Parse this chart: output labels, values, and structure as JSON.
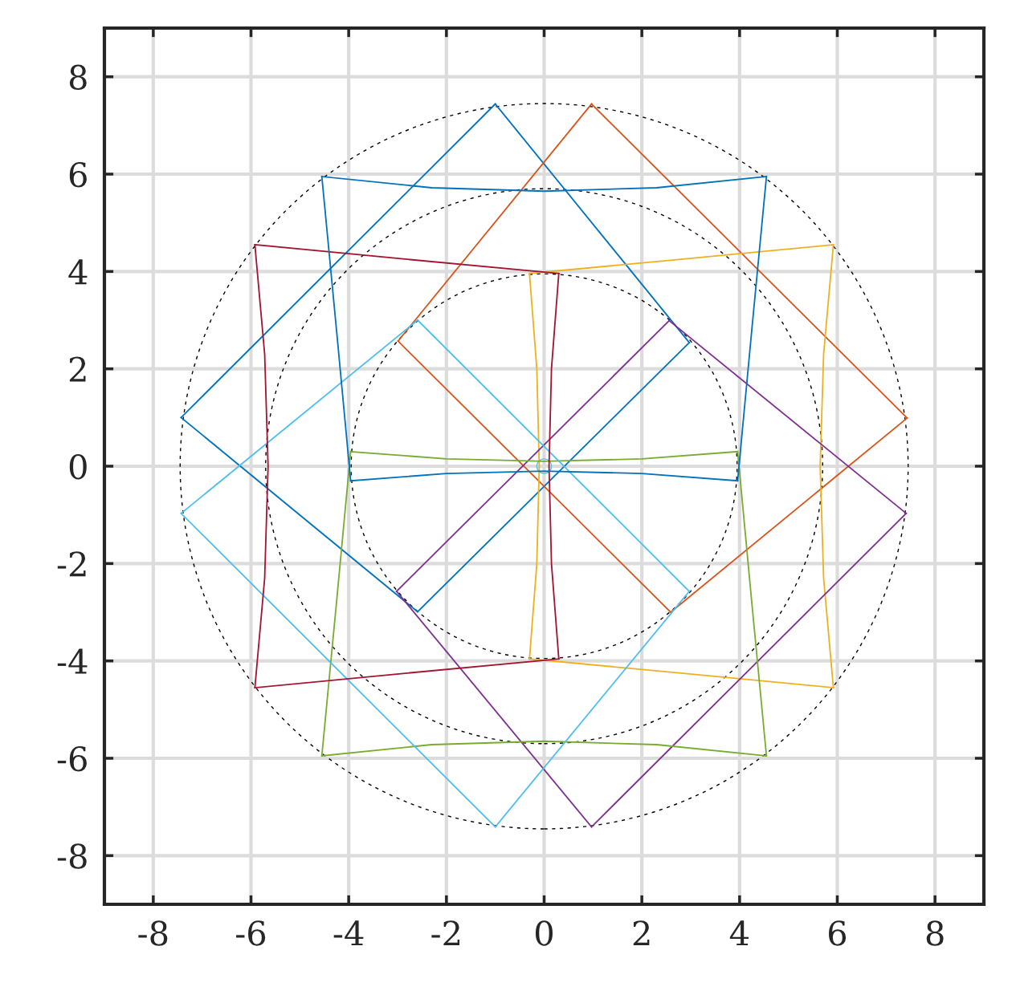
{
  "chart_data": {
    "type": "line",
    "xlim": [
      -9,
      9
    ],
    "ylim": [
      -9,
      9
    ],
    "xticks": [
      -8,
      -6,
      -4,
      -2,
      0,
      2,
      4,
      6,
      8
    ],
    "yticks": [
      -8,
      -6,
      -4,
      -2,
      0,
      2,
      4,
      6,
      8
    ],
    "grid": true,
    "marker": "none",
    "series": [
      {
        "color": "#0072bd",
        "line_style": "solid",
        "x": [
          -7.43,
          -1.0
        ],
        "values": [
          1.0,
          7.44
        ]
      },
      {
        "color": "#0072bd",
        "line_style": "solid",
        "x": [
          -1.0,
          2.97
        ],
        "values": [
          7.44,
          2.54
        ]
      },
      {
        "color": "#0072bd",
        "line_style": "solid",
        "x": [
          -2.59,
          2.97
        ],
        "values": [
          -2.99,
          2.54
        ]
      },
      {
        "color": "#0072bd",
        "line_style": "solid",
        "x": [
          -7.43,
          -2.59
        ],
        "values": [
          1.0,
          -2.99
        ]
      },
      {
        "color": "#d95319",
        "line_style": "solid",
        "x": [
          -2.99,
          0.97
        ],
        "values": [
          2.57,
          7.44
        ]
      },
      {
        "color": "#d95319",
        "line_style": "solid",
        "x": [
          0.97,
          7.43
        ],
        "values": [
          7.44,
          0.99
        ]
      },
      {
        "color": "#d95319",
        "line_style": "solid",
        "x": [
          -2.99,
          2.59
        ],
        "values": [
          2.57,
          -3.0
        ]
      },
      {
        "color": "#d95319",
        "line_style": "solid",
        "x": [
          2.59,
          7.43
        ],
        "values": [
          -3.0,
          0.99
        ]
      },
      {
        "color": "#edb120",
        "line_style": "solid",
        "x": [
          -0.3,
          2.8,
          5.92
        ],
        "values": [
          3.96,
          4.25,
          4.55
        ]
      },
      {
        "color": "#edb120",
        "line_style": "solid",
        "x": [
          -0.3,
          2.8,
          5.92
        ],
        "values": [
          -3.96,
          -4.25,
          -4.55
        ]
      },
      {
        "color": "#edb120",
        "line_style": "solid",
        "x": [
          5.92,
          5.72,
          5.65,
          5.72,
          5.92
        ],
        "values": [
          4.55,
          2.3,
          0,
          -2.3,
          -4.55
        ]
      },
      {
        "color": "#edb120",
        "line_style": "solid",
        "x": [
          -0.3,
          -0.15,
          -0.1,
          -0.15,
          -0.3
        ],
        "values": [
          3.96,
          2,
          0,
          -2,
          -3.96
        ]
      },
      {
        "color": "#7e2f8e",
        "line_style": "solid",
        "x": [
          -3.02,
          2.56
        ],
        "values": [
          -2.57,
          2.99
        ]
      },
      {
        "color": "#7e2f8e",
        "line_style": "solid",
        "x": [
          2.56,
          7.41
        ],
        "values": [
          2.99,
          -0.97
        ]
      },
      {
        "color": "#7e2f8e",
        "line_style": "solid",
        "x": [
          -3.02,
          0.97
        ],
        "values": [
          -2.57,
          -7.41
        ]
      },
      {
        "color": "#7e2f8e",
        "line_style": "solid",
        "x": [
          0.97,
          7.41
        ],
        "values": [
          -7.41,
          -0.97
        ]
      },
      {
        "color": "#77ac30",
        "line_style": "solid",
        "x": [
          -3.96,
          -2,
          0,
          2,
          3.96
        ],
        "values": [
          0.3,
          0.15,
          0.1,
          0.15,
          0.3
        ]
      },
      {
        "color": "#77ac30",
        "line_style": "solid",
        "x": [
          -4.55,
          -2.3,
          0,
          2.3,
          4.55
        ],
        "values": [
          -5.95,
          -5.72,
          -5.65,
          -5.72,
          -5.95
        ]
      },
      {
        "color": "#77ac30",
        "line_style": "solid",
        "x": [
          -4.55,
          -4.25,
          -3.96
        ],
        "values": [
          -5.95,
          -2.8,
          0.3
        ]
      },
      {
        "color": "#77ac30",
        "line_style": "solid",
        "x": [
          3.96,
          4.25,
          4.55
        ],
        "values": [
          0.3,
          -2.8,
          -5.95
        ]
      },
      {
        "color": "#4dbeee",
        "line_style": "solid",
        "x": [
          -7.43,
          -2.59
        ],
        "values": [
          -0.97,
          3.0
        ]
      },
      {
        "color": "#4dbeee",
        "line_style": "solid",
        "x": [
          -2.59,
          2.97
        ],
        "values": [
          3.0,
          -2.57
        ]
      },
      {
        "color": "#4dbeee",
        "line_style": "solid",
        "x": [
          -7.43,
          -1.0
        ],
        "values": [
          -0.97,
          -7.41
        ]
      },
      {
        "color": "#4dbeee",
        "line_style": "solid",
        "x": [
          -1.0,
          2.97
        ],
        "values": [
          -7.41,
          -2.57
        ]
      },
      {
        "color": "#a2142f",
        "line_style": "solid",
        "x": [
          -5.92,
          -2.8,
          0.3
        ],
        "values": [
          4.55,
          4.25,
          3.96
        ]
      },
      {
        "color": "#a2142f",
        "line_style": "solid",
        "x": [
          -5.92,
          -2.8,
          0.3
        ],
        "values": [
          -4.55,
          -4.25,
          -3.96
        ]
      },
      {
        "color": "#a2142f",
        "line_style": "solid",
        "x": [
          -5.92,
          -5.72,
          -5.65,
          -5.72,
          -5.92
        ],
        "values": [
          4.55,
          2.3,
          0,
          -2.3,
          -4.55
        ]
      },
      {
        "color": "#a2142f",
        "line_style": "solid",
        "x": [
          0.3,
          0.15,
          0.1,
          0.15,
          0.3
        ],
        "values": [
          3.96,
          2,
          0,
          -2,
          -3.96
        ]
      },
      {
        "color": "#0072bd",
        "line_style": "solid",
        "x": [
          -4.55,
          -2.3,
          0,
          2.3,
          4.55
        ],
        "values": [
          5.95,
          5.72,
          5.65,
          5.72,
          5.95
        ]
      },
      {
        "color": "#0072bd",
        "line_style": "solid",
        "x": [
          -3.96,
          -2,
          0,
          2,
          3.96
        ],
        "values": [
          -0.3,
          -0.15,
          -0.1,
          -0.15,
          -0.3
        ]
      },
      {
        "color": "#0072bd",
        "line_style": "solid",
        "x": [
          -4.55,
          -4.25,
          -3.96
        ],
        "values": [
          5.95,
          2.8,
          -0.3
        ]
      },
      {
        "color": "#0072bd",
        "line_style": "solid",
        "x": [
          3.96,
          4.25,
          4.55
        ],
        "values": [
          -0.3,
          2.8,
          5.95
        ]
      }
    ]
  }
}
